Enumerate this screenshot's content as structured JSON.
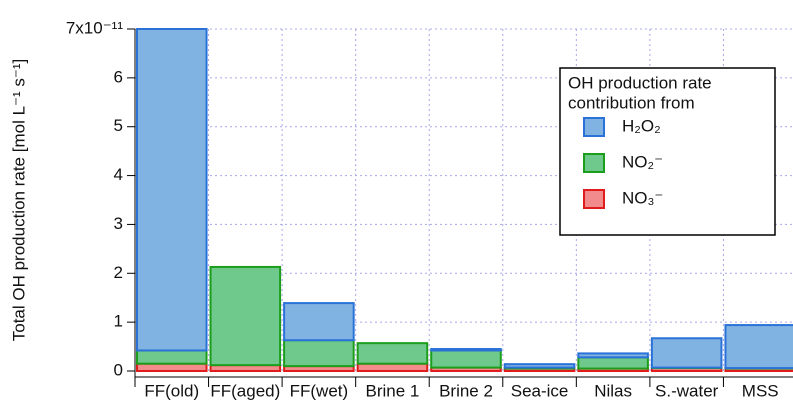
{
  "chart_data": {
    "type": "stacked_bar",
    "y_label": "Total OH production rate [mol L⁻¹ s⁻¹]",
    "categories": [
      "FF(old)",
      "FF(aged)",
      "FF(wet)",
      "Brine 1",
      "Brine 2",
      "Sea-ice",
      "Nilas",
      "S.-water",
      "MSS"
    ],
    "series": [
      {
        "name": "NO₃⁻",
        "color": "#f28b8b",
        "edgecolor": "#e01c1c",
        "values": [
          0.15,
          0.12,
          0.1,
          0.15,
          0.07,
          0.05,
          0.05,
          0.06,
          0.05
        ]
      },
      {
        "name": "NO₂⁻",
        "color": "#6fc98c",
        "edgecolor": "#1c9e1c",
        "values": [
          0.27,
          2.01,
          0.53,
          0.42,
          0.35,
          0.02,
          0.23,
          0.01,
          0.01
        ]
      },
      {
        "name": "H₂O₂",
        "color": "#80b3e2",
        "edgecolor": "#2a72d8",
        "values": [
          6.58,
          0,
          0.76,
          0,
          0.03,
          0.07,
          0.08,
          0.6,
          0.88
        ]
      }
    ],
    "legend_title": [
      "OH production rate",
      "contribution from"
    ],
    "ylim": [
      0,
      7
    ],
    "yticks": [
      0,
      1,
      2,
      3,
      4,
      5,
      6,
      {
        "value": 7,
        "label": "7x10⁻¹¹"
      }
    ],
    "grid": true,
    "grid_color": "#a8a8e8",
    "legend": "upper right"
  }
}
